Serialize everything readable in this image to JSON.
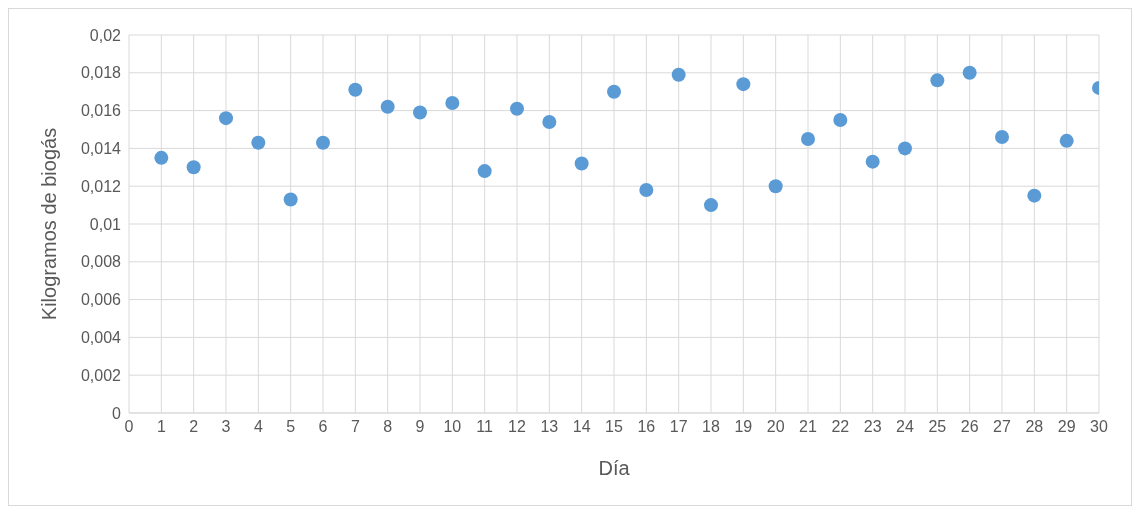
{
  "chart_data": {
    "type": "scatter",
    "xlabel": "Día",
    "ylabel": "Kilogramos de biogás",
    "x": [
      1,
      2,
      3,
      4,
      5,
      6,
      7,
      8,
      9,
      10,
      11,
      12,
      13,
      14,
      15,
      16,
      17,
      18,
      19,
      20,
      21,
      22,
      23,
      24,
      25,
      26,
      27,
      28,
      29,
      30
    ],
    "series": [
      {
        "color": "#5b9bd5",
        "values": [
          0.0135,
          0.013,
          0.0156,
          0.0143,
          0.0113,
          0.0143,
          0.0171,
          0.0162,
          0.0159,
          0.0164,
          0.0128,
          0.0161,
          0.0154,
          0.0132,
          0.017,
          0.0118,
          0.0179,
          0.011,
          0.0174,
          0.012,
          0.0145,
          0.0155,
          0.0133,
          0.014,
          0.0176,
          0.018,
          0.0146,
          0.0115,
          0.0144,
          0.0172
        ]
      }
    ],
    "xlim": [
      0,
      30
    ],
    "xticks": [
      0,
      1,
      2,
      3,
      4,
      5,
      6,
      7,
      8,
      9,
      10,
      11,
      12,
      13,
      14,
      15,
      16,
      17,
      18,
      19,
      20,
      21,
      22,
      23,
      24,
      25,
      26,
      27,
      28,
      29,
      30
    ],
    "ylim": [
      0,
      0.02
    ],
    "yticks": [
      0,
      {
        "value": 0.002,
        "label": "0,002"
      },
      {
        "value": 0.004,
        "label": "0,004"
      },
      {
        "value": 0.006,
        "label": "0,006"
      },
      {
        "value": 0.008,
        "label": "0,008"
      },
      {
        "value": 0.01,
        "label": "0,01"
      },
      {
        "value": 0.012,
        "label": "0,012"
      },
      {
        "value": 0.014,
        "label": "0,014"
      },
      {
        "value": 0.016,
        "label": "0,016"
      },
      {
        "value": 0.018,
        "label": "0,018"
      },
      {
        "value": 0.02,
        "label": "0,02"
      }
    ],
    "grid": true,
    "marker": "circle",
    "legend": false
  }
}
